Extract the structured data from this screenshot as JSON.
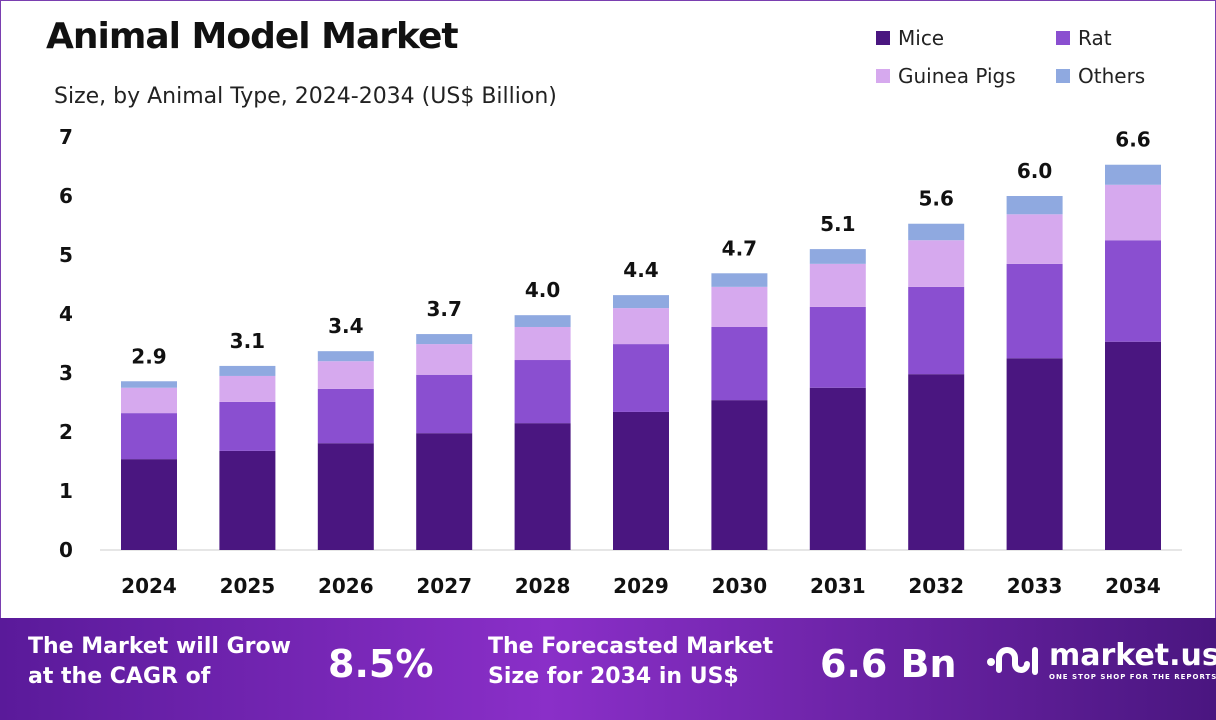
{
  "title": "Animal Model Market",
  "subtitle": "Size, by Animal Type, 2024-2034 (US$ Billion)",
  "colors": {
    "Mice": "#4a1680",
    "Rat": "#8a4fd0",
    "Guinea Pigs": "#d6a9ee",
    "Others": "#8fa9e0"
  },
  "chart_data": {
    "type": "bar",
    "stacked": true,
    "categories": [
      "2024",
      "2025",
      "2026",
      "2027",
      "2028",
      "2029",
      "2030",
      "2031",
      "2032",
      "2033",
      "2034"
    ],
    "series": [
      {
        "name": "Mice",
        "values": [
          1.54,
          1.68,
          1.81,
          1.98,
          2.15,
          2.34,
          2.54,
          2.75,
          2.98,
          3.25,
          3.53
        ]
      },
      {
        "name": "Rat",
        "values": [
          0.78,
          0.83,
          0.92,
          0.99,
          1.07,
          1.15,
          1.24,
          1.37,
          1.48,
          1.6,
          1.72
        ]
      },
      {
        "name": "Guinea Pigs",
        "values": [
          0.43,
          0.44,
          0.47,
          0.52,
          0.56,
          0.61,
          0.68,
          0.73,
          0.79,
          0.84,
          0.94
        ]
      },
      {
        "name": "Others",
        "values": [
          0.11,
          0.17,
          0.17,
          0.17,
          0.2,
          0.22,
          0.23,
          0.25,
          0.28,
          0.31,
          0.34
        ]
      }
    ],
    "totals_labels": [
      "2.9",
      "3.1",
      "3.4",
      "3.7",
      "4.0",
      "4.4",
      "4.7",
      "5.1",
      "5.6",
      "6.0",
      "6.6"
    ],
    "ylim": [
      0,
      7
    ],
    "yticks": [
      "0",
      "1",
      "2",
      "3",
      "4",
      "5",
      "6",
      "7"
    ],
    "grid": false,
    "legend": "top-right"
  },
  "footer": {
    "cagr_text": "The Market will Grow at the CAGR of",
    "cagr_line1": "The Market will Grow",
    "cagr_line2": "at the CAGR of",
    "cagr_value": "8.5%",
    "forecast_line1": "The Forecasted Market",
    "forecast_line2": "Size for 2034 in US$",
    "forecast_value": "6.6 Bn",
    "logo_name": "market.us",
    "logo_tagline": "ONE STOP SHOP FOR THE REPORTS"
  }
}
